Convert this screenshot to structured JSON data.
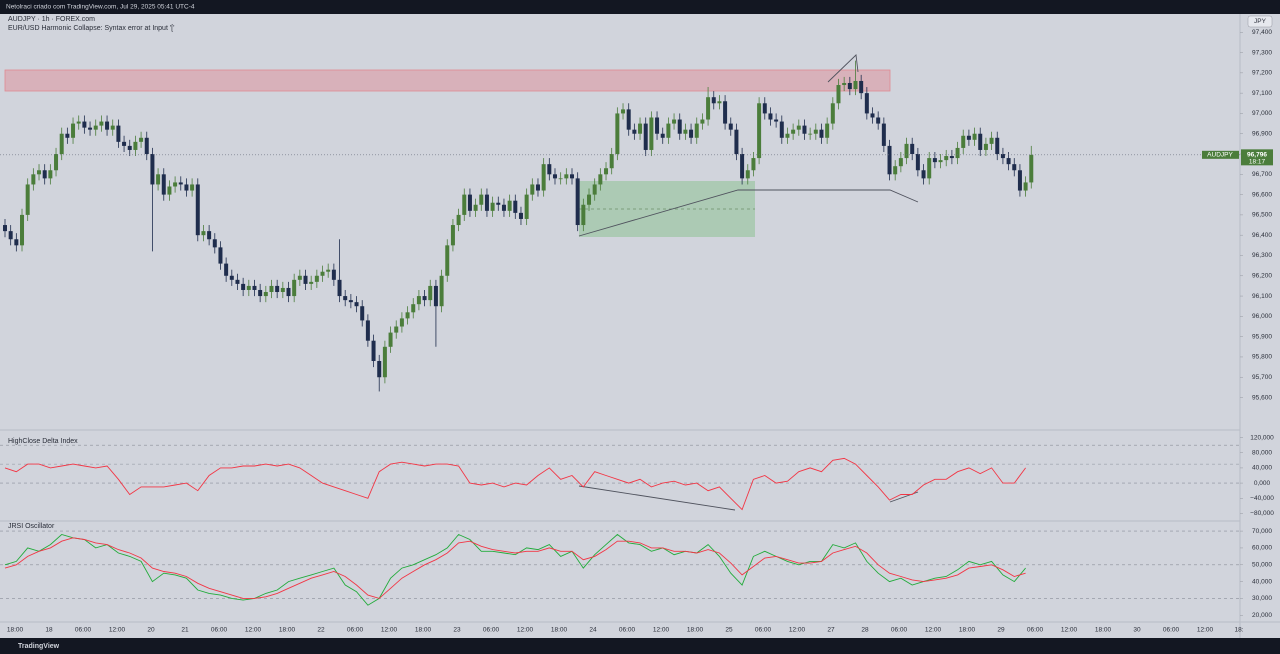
{
  "header": {
    "text": "Netolraci criado com TradingView.com, Jul 29, 2025 05:41 UTC-4"
  },
  "footer": {
    "brand": "TradingView"
  },
  "time_axis": {
    "labels": [
      "18:00",
      "18",
      "06:00",
      "12:00",
      "20",
      "21",
      "06:00",
      "12:00",
      "18:00",
      "22",
      "06:00",
      "12:00",
      "18:00",
      "23",
      "06:00",
      "12:00",
      "18:00",
      "24",
      "06:00",
      "12:00",
      "18:00",
      "25",
      "06:00",
      "12:00",
      "27",
      "28",
      "06:00",
      "12:00",
      "18:00",
      "29",
      "06:00",
      "12:00",
      "18:00",
      "30",
      "06:00",
      "12:00",
      "18:"
    ]
  },
  "chart_data": [
    {
      "type": "candlestick",
      "title": "AUDJPY · 1h · FOREX.com",
      "subtitle": "EUR/USD Harmonic Collapse: Syntax error at Input '['",
      "currency": "JPY",
      "up_color": "#4b7d3b",
      "down_color": "#1f2d4d",
      "ylim": [
        95.44,
        97.49
      ],
      "yticks": [
        {
          "value": 95.6,
          "label": "95,600"
        },
        {
          "value": 95.7,
          "label": "95,700"
        },
        {
          "value": 95.8,
          "label": "95,800"
        },
        {
          "value": 95.9,
          "label": "95,900"
        },
        {
          "value": 96.0,
          "label": "96,000"
        },
        {
          "value": 96.1,
          "label": "96,100"
        },
        {
          "value": 96.2,
          "label": "96,200"
        },
        {
          "value": 96.3,
          "label": "96,300"
        },
        {
          "value": 96.4,
          "label": "96,400"
        },
        {
          "value": 96.5,
          "label": "96,500"
        },
        {
          "value": 96.6,
          "label": "96,600"
        },
        {
          "value": 96.7,
          "label": "96,700"
        },
        {
          "value": 96.8,
          "label": "96,800"
        },
        {
          "value": 96.9,
          "label": "96,900"
        },
        {
          "value": 97.0,
          "label": "97,000"
        },
        {
          "value": 97.1,
          "label": "97,100"
        },
        {
          "value": 97.2,
          "label": "97,200"
        },
        {
          "value": 97.3,
          "label": "97,300"
        },
        {
          "value": 97.4,
          "label": "97,400"
        }
      ],
      "last": {
        "value": 96.796,
        "label": "96,796",
        "symbol": "AUDJPY",
        "countdown": "18:17"
      },
      "open": [
        96.45,
        96.42,
        96.38,
        96.35,
        96.5,
        96.65,
        96.7,
        96.72,
        96.68,
        96.72,
        96.8,
        96.9,
        96.88,
        96.95,
        96.96,
        96.93,
        96.92,
        96.94,
        96.96,
        96.92,
        96.94,
        96.86,
        96.84,
        96.82,
        96.86,
        96.88,
        96.8,
        96.65,
        96.7,
        96.6,
        96.64,
        96.66,
        96.65,
        96.62,
        96.65,
        96.4,
        96.42,
        96.38,
        96.34,
        96.26,
        96.2,
        96.18,
        96.16,
        96.13,
        96.15,
        96.13,
        96.1,
        96.12,
        96.15,
        96.12,
        96.14,
        96.1,
        96.18,
        96.2,
        96.16,
        96.17,
        96.2,
        96.22,
        96.23,
        96.18,
        96.1,
        96.08,
        96.07,
        96.05,
        95.98,
        95.88,
        95.78,
        95.7,
        95.85,
        95.92,
        95.95,
        95.99,
        96.02,
        96.06,
        96.1,
        96.08,
        96.15,
        96.05,
        96.2,
        96.35,
        96.45,
        96.5,
        96.6,
        96.52,
        96.55,
        96.6,
        96.52,
        96.56,
        96.55,
        96.52,
        96.57,
        96.51,
        96.48,
        96.6,
        96.65,
        96.62,
        96.75,
        96.7,
        96.68,
        96.68,
        96.7,
        96.68,
        96.45,
        96.55,
        96.6,
        96.65,
        96.7,
        96.73,
        96.8,
        97.0,
        97.02,
        96.92,
        96.9,
        96.95,
        96.82,
        96.98,
        96.9,
        96.88,
        96.95,
        96.97,
        96.9,
        96.92,
        96.88,
        96.95,
        96.97,
        97.08,
        97.05,
        97.06,
        96.95,
        96.92,
        96.8,
        96.68,
        96.72,
        96.78,
        97.05,
        97.0,
        96.97,
        96.96,
        96.88,
        96.9,
        96.92,
        96.94,
        96.9,
        96.9,
        96.92,
        96.88,
        96.95,
        97.05,
        97.14,
        97.15,
        97.12,
        97.16,
        97.1,
        97.0,
        96.98,
        96.95,
        96.84,
        96.7,
        96.74,
        96.78,
        96.85,
        96.8,
        96.72,
        96.68,
        96.78,
        96.76,
        96.77,
        96.79,
        96.78,
        96.83,
        96.89,
        96.87,
        96.9,
        96.82,
        96.85,
        96.88,
        96.8,
        96.78,
        96.75,
        96.72,
        96.62,
        96.66
      ],
      "high": [
        96.48,
        96.45,
        96.41,
        96.53,
        96.68,
        96.73,
        96.75,
        96.75,
        96.75,
        96.83,
        96.93,
        96.93,
        96.98,
        96.99,
        96.99,
        96.96,
        96.97,
        96.99,
        96.99,
        96.97,
        96.97,
        96.89,
        96.87,
        96.89,
        96.91,
        96.91,
        96.83,
        96.73,
        96.73,
        96.67,
        96.69,
        96.69,
        96.68,
        96.68,
        96.68,
        96.45,
        96.45,
        96.41,
        96.37,
        96.29,
        96.23,
        96.21,
        96.19,
        96.18,
        96.18,
        96.16,
        96.15,
        96.18,
        96.18,
        96.17,
        96.17,
        96.21,
        96.23,
        96.23,
        96.2,
        96.23,
        96.25,
        96.26,
        96.26,
        96.38,
        96.13,
        96.11,
        96.1,
        96.08,
        96.01,
        95.91,
        95.81,
        95.88,
        95.95,
        95.98,
        96.02,
        96.05,
        96.09,
        96.13,
        96.13,
        96.18,
        96.18,
        96.23,
        96.38,
        96.48,
        96.53,
        96.63,
        96.63,
        96.58,
        96.63,
        96.63,
        96.59,
        96.59,
        96.58,
        96.6,
        96.6,
        96.54,
        96.63,
        96.68,
        96.68,
        96.78,
        96.78,
        96.73,
        96.71,
        96.73,
        96.73,
        96.71,
        96.58,
        96.63,
        96.68,
        96.73,
        96.76,
        96.83,
        97.03,
        97.05,
        97.05,
        96.95,
        96.98,
        96.98,
        97.01,
        97.01,
        96.93,
        96.98,
        97.0,
        97.0,
        96.95,
        96.95,
        96.98,
        97.0,
        97.13,
        97.11,
        97.09,
        97.09,
        96.98,
        96.95,
        96.83,
        96.75,
        96.81,
        97.08,
        97.08,
        97.03,
        97.0,
        96.99,
        96.93,
        96.95,
        96.97,
        96.97,
        96.93,
        96.95,
        96.95,
        96.98,
        97.08,
        97.17,
        97.18,
        97.18,
        97.26,
        97.19,
        97.13,
        97.03,
        97.01,
        96.98,
        96.87,
        96.77,
        96.81,
        96.88,
        96.88,
        96.83,
        96.75,
        96.81,
        96.81,
        96.8,
        96.82,
        96.82,
        96.86,
        96.92,
        96.92,
        96.93,
        96.93,
        96.88,
        96.91,
        96.91,
        96.83,
        96.81,
        96.78,
        96.75,
        96.69,
        96.84
      ],
      "low": [
        96.39,
        96.35,
        96.32,
        96.32,
        96.47,
        96.62,
        96.67,
        96.65,
        96.65,
        96.69,
        96.77,
        96.85,
        96.85,
        96.92,
        96.9,
        96.89,
        96.89,
        96.91,
        96.89,
        96.89,
        96.83,
        96.81,
        96.79,
        96.79,
        96.83,
        96.77,
        96.32,
        96.62,
        96.57,
        96.57,
        96.61,
        96.62,
        96.59,
        96.59,
        96.37,
        96.37,
        96.35,
        96.31,
        96.23,
        96.17,
        96.15,
        96.13,
        96.1,
        96.1,
        96.1,
        96.07,
        96.07,
        96.09,
        96.09,
        96.09,
        96.07,
        96.07,
        96.15,
        96.13,
        96.13,
        96.14,
        96.17,
        96.19,
        96.15,
        96.07,
        96.05,
        96.04,
        96.02,
        95.95,
        95.85,
        95.75,
        95.63,
        95.67,
        95.82,
        95.89,
        95.92,
        95.96,
        95.99,
        96.03,
        96.05,
        96.05,
        95.85,
        96.02,
        96.17,
        96.32,
        96.42,
        96.47,
        96.49,
        96.49,
        96.52,
        96.49,
        96.49,
        96.52,
        96.49,
        96.49,
        96.48,
        96.45,
        96.45,
        96.57,
        96.59,
        96.59,
        96.67,
        96.65,
        96.65,
        96.65,
        96.65,
        96.42,
        96.42,
        96.52,
        96.57,
        96.62,
        96.67,
        96.7,
        96.77,
        96.97,
        96.89,
        96.87,
        96.87,
        96.79,
        96.79,
        96.87,
        96.85,
        96.85,
        96.92,
        96.87,
        96.87,
        96.85,
        96.85,
        96.92,
        96.94,
        97.02,
        97.02,
        96.92,
        96.89,
        96.77,
        96.65,
        96.65,
        96.69,
        96.75,
        96.97,
        96.94,
        96.93,
        96.85,
        96.85,
        96.87,
        96.89,
        96.87,
        96.87,
        96.87,
        96.85,
        96.85,
        96.92,
        97.02,
        97.11,
        97.09,
        97.09,
        97.07,
        96.97,
        96.95,
        96.92,
        96.81,
        96.67,
        96.67,
        96.71,
        96.75,
        96.77,
        96.69,
        96.65,
        96.65,
        96.73,
        96.73,
        96.74,
        96.75,
        96.75,
        96.8,
        96.84,
        96.84,
        96.79,
        96.79,
        96.82,
        96.77,
        96.75,
        96.72,
        96.69,
        96.59,
        96.59,
        96.63
      ],
      "close": [
        96.42,
        96.38,
        96.35,
        96.5,
        96.65,
        96.7,
        96.72,
        96.68,
        96.72,
        96.8,
        96.9,
        96.88,
        96.95,
        96.96,
        96.93,
        96.92,
        96.94,
        96.96,
        96.92,
        96.94,
        96.86,
        96.84,
        96.82,
        96.86,
        96.88,
        96.8,
        96.65,
        96.7,
        96.6,
        96.64,
        96.66,
        96.65,
        96.62,
        96.65,
        96.4,
        96.42,
        96.38,
        96.34,
        96.26,
        96.2,
        96.18,
        96.16,
        96.13,
        96.15,
        96.13,
        96.1,
        96.12,
        96.15,
        96.12,
        96.14,
        96.1,
        96.18,
        96.2,
        96.16,
        96.17,
        96.2,
        96.22,
        96.23,
        96.18,
        96.1,
        96.08,
        96.07,
        96.05,
        95.98,
        95.88,
        95.78,
        95.7,
        95.85,
        95.92,
        95.95,
        95.99,
        96.02,
        96.06,
        96.1,
        96.08,
        96.15,
        96.05,
        96.2,
        96.35,
        96.45,
        96.5,
        96.6,
        96.52,
        96.55,
        96.6,
        96.52,
        96.56,
        96.55,
        96.52,
        96.57,
        96.51,
        96.48,
        96.6,
        96.65,
        96.62,
        96.75,
        96.7,
        96.68,
        96.68,
        96.7,
        96.68,
        96.45,
        96.55,
        96.6,
        96.65,
        96.7,
        96.73,
        96.8,
        97.0,
        97.02,
        96.92,
        96.9,
        96.95,
        96.82,
        96.98,
        96.9,
        96.88,
        96.95,
        96.97,
        96.9,
        96.92,
        96.88,
        96.95,
        96.97,
        97.08,
        97.05,
        97.06,
        96.95,
        96.92,
        96.8,
        96.68,
        96.72,
        96.78,
        97.05,
        97.0,
        96.97,
        96.96,
        96.88,
        96.9,
        96.92,
        96.94,
        96.9,
        96.9,
        96.92,
        96.88,
        96.95,
        97.05,
        97.14,
        97.15,
        97.12,
        97.16,
        97.1,
        97.0,
        96.98,
        96.95,
        96.84,
        96.7,
        96.74,
        96.78,
        96.85,
        96.8,
        96.72,
        96.68,
        96.78,
        96.76,
        96.77,
        96.79,
        96.78,
        96.83,
        96.89,
        96.87,
        96.9,
        96.82,
        96.85,
        96.88,
        96.8,
        96.78,
        96.75,
        96.72,
        96.62,
        96.66,
        96.796
      ]
    },
    {
      "type": "line",
      "title": "HighClose Delta Index",
      "ylim": [
        -100,
        140
      ],
      "yticks": [
        {
          "value": 120,
          "label": "120,000"
        },
        {
          "value": 80,
          "label": "80,000"
        },
        {
          "value": 40,
          "label": "40,000"
        },
        {
          "value": 0,
          "label": "0,000"
        },
        {
          "value": -40,
          "label": "−40,000"
        },
        {
          "value": -80,
          "label": "−80,000"
        }
      ],
      "levels": [
        100,
        50,
        0
      ],
      "series": [
        {
          "color": "#f23645",
          "values": [
            40,
            30,
            50,
            50,
            40,
            45,
            50,
            45,
            40,
            45,
            10,
            -30,
            -10,
            -10,
            -10,
            -5,
            0,
            -20,
            20,
            40,
            40,
            45,
            45,
            50,
            45,
            50,
            40,
            20,
            0,
            -10,
            -20,
            -30,
            -40,
            30,
            50,
            55,
            50,
            45,
            50,
            50,
            45,
            0,
            -5,
            0,
            -10,
            0,
            -5,
            20,
            40,
            10,
            20,
            -10,
            30,
            20,
            10,
            0,
            10,
            -10,
            0,
            5,
            -5,
            0,
            -20,
            -10,
            -40,
            -70,
            10,
            20,
            0,
            5,
            30,
            40,
            30,
            60,
            65,
            50,
            20,
            -10,
            -45,
            -30,
            -30,
            -5,
            10,
            10,
            30,
            40,
            25,
            40,
            0,
            0,
            40
          ]
        }
      ]
    },
    {
      "type": "line",
      "title": "JRSI Oscillator",
      "ylim": [
        16,
        76
      ],
      "yticks": [
        {
          "value": 70,
          "label": "70,000"
        },
        {
          "value": 60,
          "label": "60,000"
        },
        {
          "value": 50,
          "label": "50,000"
        },
        {
          "value": 40,
          "label": "40,000"
        },
        {
          "value": 30,
          "label": "30,000"
        },
        {
          "value": 20,
          "label": "20,000"
        }
      ],
      "levels": [
        70,
        50,
        30
      ],
      "series": [
        {
          "color": "#22ab3b",
          "values": [
            50,
            52,
            60,
            58,
            62,
            68,
            66,
            65,
            60,
            62,
            57,
            55,
            52,
            40,
            45,
            44,
            42,
            35,
            33,
            32,
            30,
            29,
            30,
            33,
            35,
            40,
            42,
            44,
            46,
            48,
            38,
            34,
            26,
            30,
            42,
            48,
            50,
            53,
            56,
            60,
            68,
            65,
            58,
            58,
            57,
            56,
            60,
            59,
            62,
            55,
            58,
            48,
            56,
            62,
            68,
            63,
            62,
            58,
            60,
            56,
            58,
            57,
            62,
            55,
            45,
            38,
            55,
            58,
            55,
            52,
            50,
            52,
            52,
            62,
            60,
            63,
            52,
            45,
            40,
            42,
            38,
            40,
            42,
            43,
            47,
            52,
            50,
            52,
            44,
            40,
            48
          ]
        },
        {
          "color": "#f23645",
          "values": [
            48,
            50,
            55,
            58,
            60,
            64,
            66,
            65,
            63,
            62,
            59,
            57,
            54,
            48,
            46,
            45,
            43,
            39,
            36,
            34,
            32,
            30,
            30,
            31,
            33,
            36,
            39,
            42,
            44,
            46,
            43,
            38,
            32,
            30,
            36,
            42,
            46,
            50,
            53,
            57,
            63,
            64,
            61,
            59,
            58,
            57,
            58,
            58,
            60,
            58,
            58,
            53,
            55,
            59,
            64,
            64,
            63,
            60,
            60,
            58,
            58,
            57,
            59,
            57,
            51,
            44,
            49,
            54,
            55,
            53,
            51,
            51,
            52,
            57,
            59,
            61,
            57,
            50,
            45,
            43,
            41,
            40,
            41,
            42,
            44,
            48,
            49,
            50,
            47,
            43,
            45
          ]
        }
      ]
    }
  ]
}
